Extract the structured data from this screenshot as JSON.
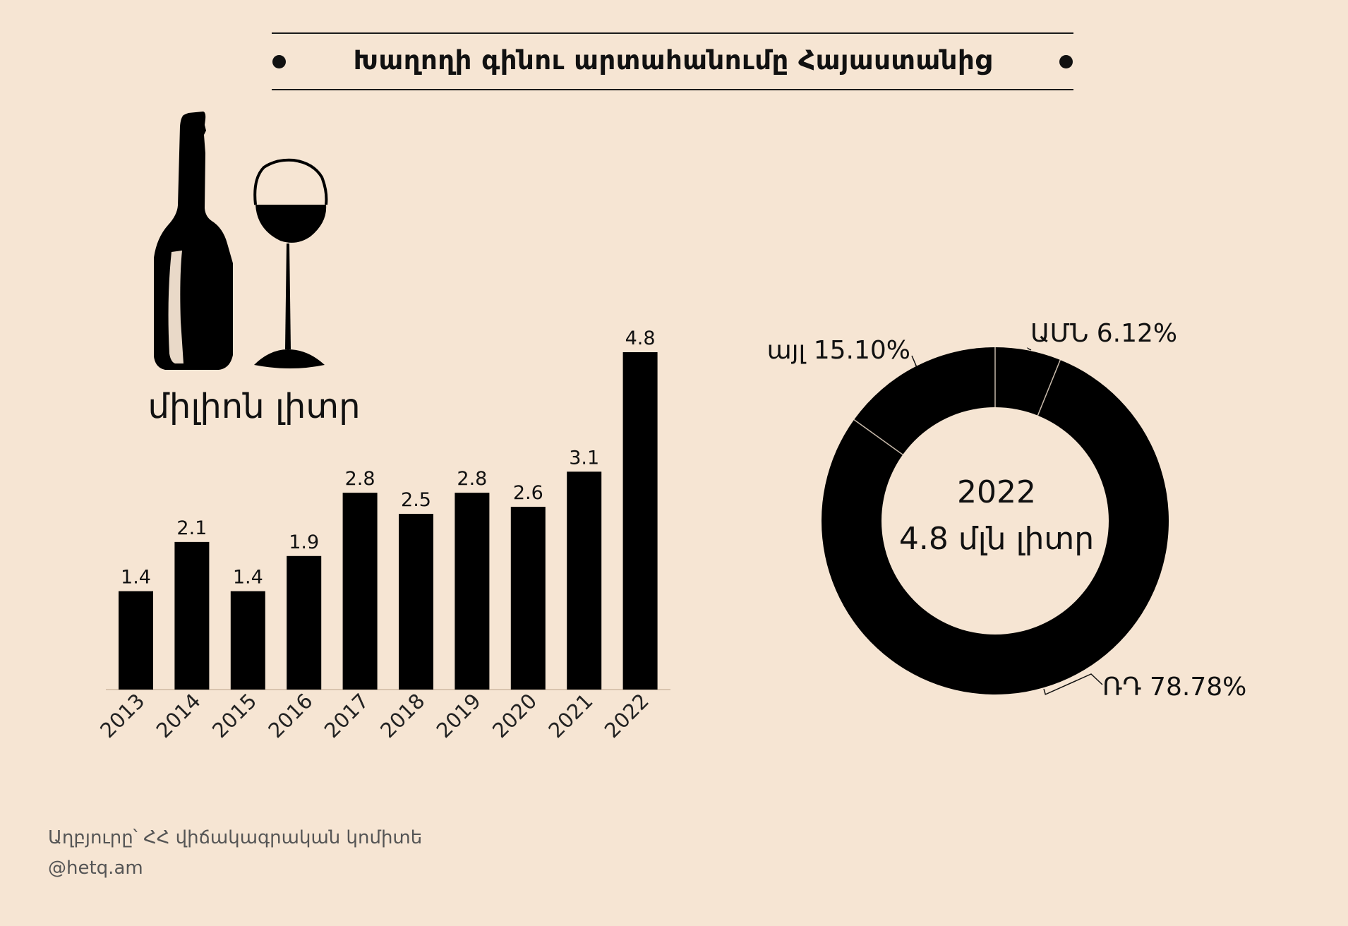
{
  "title": "Խաղողի գինու արտահանումը Հայաստանից",
  "unit_label": "միլիոն լիտր",
  "icons": {
    "bottle": "wine-bottle-icon",
    "glass": "wine-glass-icon"
  },
  "colors": {
    "background": "#f6e5d3",
    "ink": "#000000",
    "separator": "#f6e5d3"
  },
  "chart_data": [
    {
      "type": "bar",
      "categories": [
        "2013",
        "2014",
        "2015",
        "2016",
        "2017",
        "2018",
        "2019",
        "2020",
        "2021",
        "2022"
      ],
      "values": [
        1.4,
        2.1,
        1.4,
        1.9,
        2.8,
        2.5,
        2.8,
        2.6,
        3.1,
        4.8
      ],
      "labels": [
        "1.4",
        "2.1",
        "1.4",
        "1.9",
        "2.8",
        "2.5",
        "2.8",
        "2.6",
        "3.1",
        "4.8"
      ],
      "ylim": [
        0,
        4.8
      ],
      "grid": false,
      "ylabel": "միլիոն լիտր"
    },
    {
      "type": "pie",
      "center_year": "2022",
      "center_total": "4.8 մլն լիտր",
      "slices": [
        {
          "label": "ԱՄՆ 6.12%",
          "value": 6.12
        },
        {
          "label": "ՌԴ 78.78%",
          "value": 78.78
        },
        {
          "label": "այլ 15.10%",
          "value": 15.1
        }
      ]
    }
  ],
  "footer": {
    "source": "Աղբյուրը՝ ՀՀ վիճակագրական կոմիտե",
    "site": "@hetq.am"
  }
}
